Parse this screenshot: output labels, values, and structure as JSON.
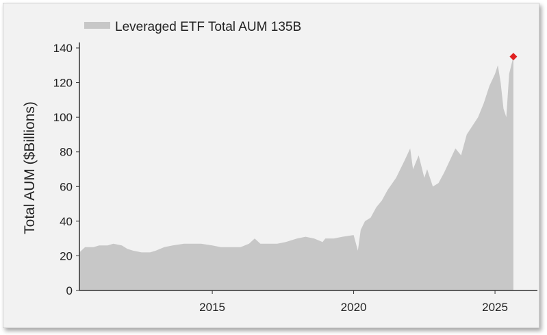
{
  "colors": {
    "area": "#c7c7c7",
    "marker": "#e02020",
    "axis": "#333333",
    "background": "#f2f2f2"
  },
  "chart_data": {
    "type": "area",
    "title": "",
    "xlabel": "",
    "ylabel": "Total AUM ($Billions)",
    "legend": {
      "label": "Leveraged ETF Total AUM 135B",
      "position": "top-left"
    },
    "xlim": [
      2010.3,
      2026.5
    ],
    "ylim": [
      0,
      140
    ],
    "x_ticks": [
      "2015",
      "2020",
      "2025"
    ],
    "y_ticks": [
      "0",
      "20",
      "40",
      "60",
      "80",
      "100",
      "120",
      "140"
    ],
    "grid": false,
    "series": [
      {
        "x": [
          2010.3,
          2010.5,
          2010.8,
          2011.0,
          2011.3,
          2011.5,
          2011.8,
          2012.0,
          2012.2,
          2012.5,
          2012.8,
          2013.0,
          2013.3,
          2013.6,
          2014.0,
          2014.3,
          2014.6,
          2015.0,
          2015.3,
          2015.6,
          2016.0,
          2016.3,
          2016.5,
          2016.7,
          2017.0,
          2017.3,
          2017.6,
          2018.0,
          2018.3,
          2018.6,
          2018.9,
          2019.0,
          2019.3,
          2019.6,
          2020.0,
          2020.15,
          2020.25,
          2020.4,
          2020.6,
          2020.8,
          2021.0,
          2021.2,
          2021.5,
          2021.8,
          2022.0,
          2022.1,
          2022.3,
          2022.5,
          2022.6,
          2022.8,
          2023.0,
          2023.2,
          2023.4,
          2023.6,
          2023.8,
          2024.0,
          2024.2,
          2024.4,
          2024.6,
          2024.8,
          2025.0,
          2025.1,
          2025.2,
          2025.3,
          2025.4,
          2025.5,
          2025.65
        ],
        "values": [
          22,
          25,
          25,
          26,
          26,
          27,
          26,
          24,
          23,
          22,
          22,
          23,
          25,
          26,
          27,
          27,
          27,
          26,
          25,
          25,
          25,
          27,
          30,
          27,
          27,
          27,
          28,
          30,
          31,
          30,
          28,
          30,
          30,
          31,
          32,
          23,
          35,
          40,
          42,
          48,
          52,
          58,
          65,
          75,
          82,
          70,
          78,
          65,
          70,
          60,
          62,
          68,
          75,
          82,
          78,
          90,
          95,
          100,
          108,
          118,
          125,
          130,
          120,
          105,
          100,
          125,
          135
        ]
      }
    ],
    "highlight_point": {
      "x": 2025.65,
      "y": 135
    }
  }
}
